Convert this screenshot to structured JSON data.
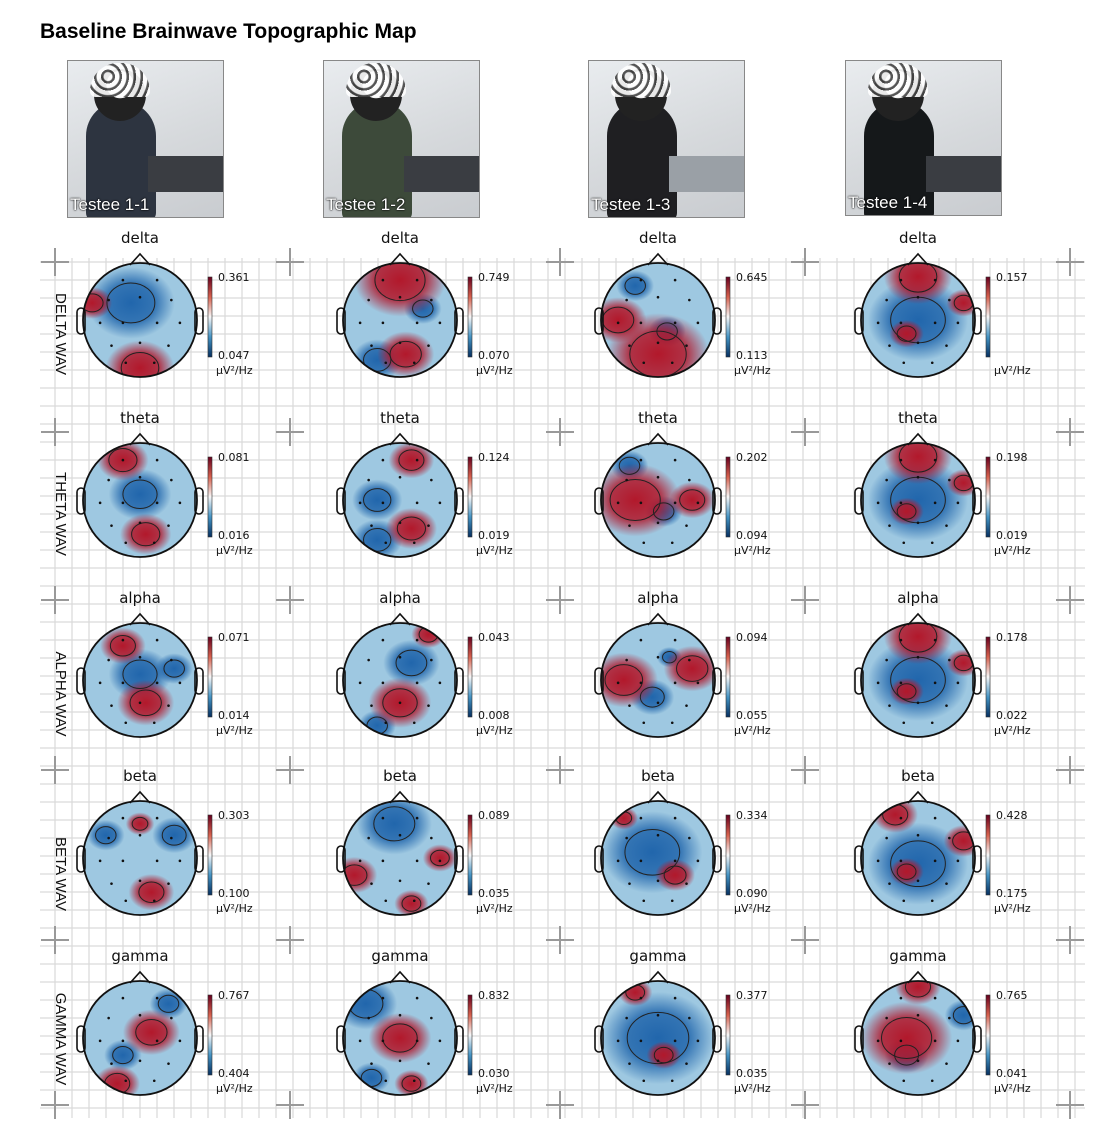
{
  "title": "Baseline Brainwave Topographic Map",
  "testees": [
    "Testee 1-1",
    "Testee 1-2",
    "Testee 1-3",
    "Testee 1-4"
  ],
  "row_labels": [
    "DELTA WAV",
    "THETA WAV",
    "ALPHA WAV",
    "BETA WAV",
    "GAMMA WAV"
  ],
  "unit": "µV²/Hz",
  "colors": {
    "low": "#053061",
    "mid": "#f7f7f7",
    "high": "#67001f",
    "grid": "#c8c8c8"
  },
  "rows": [
    {
      "band": "delta",
      "maps": [
        {
          "max": "0.361",
          "min": "0.047",
          "hot": [
            [
              0.5,
              0.92,
              0.6
            ],
            [
              0.08,
              0.35,
              0.35
            ]
          ],
          "cold": [
            [
              0.42,
              0.35,
              0.7
            ]
          ]
        },
        {
          "max": "0.749",
          "min": "0.070",
          "hot": [
            [
              0.5,
              0.15,
              0.8
            ],
            [
              0.55,
              0.8,
              0.5
            ]
          ],
          "cold": [
            [
              0.3,
              0.85,
              0.4
            ],
            [
              0.7,
              0.4,
              0.3
            ]
          ]
        },
        {
          "max": "0.645",
          "min": "0.113",
          "hot": [
            [
              0.5,
              0.8,
              0.9
            ],
            [
              0.15,
              0.5,
              0.5
            ]
          ],
          "cold": [
            [
              0.58,
              0.6,
              0.3
            ],
            [
              0.3,
              0.2,
              0.3
            ]
          ]
        },
        {
          "max": "0.157",
          "min": "",
          "hot": [
            [
              0.4,
              0.62,
              0.3
            ],
            [
              0.5,
              0.12,
              0.6
            ],
            [
              0.9,
              0.35,
              0.3
            ]
          ],
          "cold": [
            [
              0.5,
              0.5,
              0.8
            ]
          ]
        }
      ]
    },
    {
      "band": "theta",
      "maps": [
        {
          "max": "0.081",
          "min": "0.016",
          "hot": [
            [
              0.55,
              0.8,
              0.45
            ],
            [
              0.35,
              0.15,
              0.45
            ]
          ],
          "cold": [
            [
              0.5,
              0.45,
              0.5
            ]
          ]
        },
        {
          "max": "0.124",
          "min": "0.019",
          "hot": [
            [
              0.6,
              0.15,
              0.4
            ],
            [
              0.6,
              0.75,
              0.45
            ]
          ],
          "cold": [
            [
              0.3,
              0.85,
              0.4
            ],
            [
              0.3,
              0.5,
              0.4
            ]
          ]
        },
        {
          "max": "0.202",
          "min": "0.094",
          "hot": [
            [
              0.3,
              0.5,
              0.8
            ],
            [
              0.8,
              0.5,
              0.4
            ]
          ],
          "cold": [
            [
              0.55,
              0.6,
              0.3
            ],
            [
              0.25,
              0.2,
              0.3
            ]
          ]
        },
        {
          "max": "0.198",
          "min": "0.019",
          "hot": [
            [
              0.4,
              0.6,
              0.3
            ],
            [
              0.5,
              0.12,
              0.6
            ],
            [
              0.9,
              0.35,
              0.3
            ]
          ],
          "cold": [
            [
              0.5,
              0.5,
              0.8
            ]
          ]
        }
      ]
    },
    {
      "band": "alpha",
      "maps": [
        {
          "max": "0.071",
          "min": "0.014",
          "hot": [
            [
              0.55,
              0.7,
              0.5
            ],
            [
              0.35,
              0.2,
              0.4
            ]
          ],
          "cold": [
            [
              0.5,
              0.45,
              0.5
            ],
            [
              0.8,
              0.4,
              0.3
            ]
          ]
        },
        {
          "max": "0.043",
          "min": "0.008",
          "hot": [
            [
              0.5,
              0.7,
              0.55
            ],
            [
              0.75,
              0.1,
              0.3
            ]
          ],
          "cold": [
            [
              0.6,
              0.35,
              0.45
            ],
            [
              0.3,
              0.9,
              0.3
            ]
          ]
        },
        {
          "max": "0.094",
          "min": "0.055",
          "hot": [
            [
              0.2,
              0.5,
              0.6
            ],
            [
              0.8,
              0.4,
              0.5
            ]
          ],
          "cold": [
            [
              0.45,
              0.65,
              0.35
            ],
            [
              0.6,
              0.3,
              0.2
            ]
          ]
        },
        {
          "max": "0.178",
          "min": "0.022",
          "hot": [
            [
              0.4,
              0.6,
              0.3
            ],
            [
              0.5,
              0.12,
              0.6
            ],
            [
              0.9,
              0.35,
              0.3
            ]
          ],
          "cold": [
            [
              0.5,
              0.5,
              0.8
            ]
          ]
        }
      ]
    },
    {
      "band": "beta",
      "maps": [
        {
          "max": "0.303",
          "min": "0.100",
          "hot": [
            [
              0.6,
              0.8,
              0.4
            ],
            [
              0.5,
              0.2,
              0.25
            ]
          ],
          "cold": [
            [
              0.2,
              0.3,
              0.3
            ],
            [
              0.8,
              0.3,
              0.35
            ]
          ]
        },
        {
          "max": "0.089",
          "min": "0.035",
          "hot": [
            [
              0.1,
              0.65,
              0.4
            ],
            [
              0.6,
              0.9,
              0.3
            ],
            [
              0.85,
              0.5,
              0.3
            ]
          ],
          "cold": [
            [
              0.45,
              0.2,
              0.6
            ]
          ]
        },
        {
          "max": "0.334",
          "min": "0.090",
          "hot": [
            [
              0.65,
              0.65,
              0.35
            ],
            [
              0.2,
              0.15,
              0.25
            ]
          ],
          "cold": [
            [
              0.45,
              0.45,
              0.8
            ]
          ]
        },
        {
          "max": "0.428",
          "min": "0.175",
          "hot": [
            [
              0.4,
              0.62,
              0.3
            ],
            [
              0.3,
              0.12,
              0.4
            ],
            [
              0.9,
              0.35,
              0.35
            ]
          ],
          "cold": [
            [
              0.5,
              0.55,
              0.8
            ]
          ]
        }
      ]
    },
    {
      "band": "gamma",
      "maps": [
        {
          "max": "0.767",
          "min": "0.404",
          "hot": [
            [
              0.6,
              0.45,
              0.5
            ],
            [
              0.3,
              0.9,
              0.4
            ]
          ],
          "cold": [
            [
              0.35,
              0.65,
              0.3
            ],
            [
              0.75,
              0.2,
              0.3
            ]
          ]
        },
        {
          "max": "0.832",
          "min": "0.030",
          "hot": [
            [
              0.5,
              0.5,
              0.55
            ],
            [
              0.6,
              0.9,
              0.3
            ]
          ],
          "cold": [
            [
              0.2,
              0.2,
              0.5
            ],
            [
              0.25,
              0.85,
              0.3
            ]
          ]
        },
        {
          "max": "0.377",
          "min": "0.035",
          "hot": [
            [
              0.55,
              0.65,
              0.3
            ],
            [
              0.3,
              0.1,
              0.3
            ]
          ],
          "cold": [
            [
              0.5,
              0.5,
              0.9
            ]
          ]
        },
        {
          "max": "0.765",
          "min": "0.041",
          "hot": [
            [
              0.4,
              0.5,
              0.8
            ],
            [
              0.5,
              0.05,
              0.4
            ]
          ],
          "cold": [
            [
              0.4,
              0.65,
              0.35
            ],
            [
              0.9,
              0.3,
              0.3
            ]
          ]
        }
      ]
    }
  ]
}
